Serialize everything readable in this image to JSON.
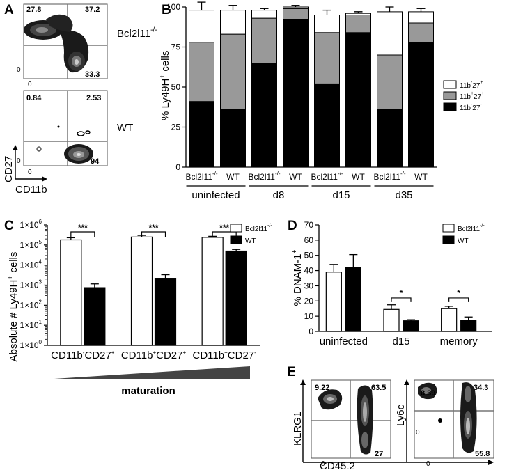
{
  "panels": {
    "A": {
      "letter": "A",
      "top": {
        "label": "Bcl2l11",
        "sup": "-/-",
        "q_tl": "27.8",
        "q_tr": "37.2",
        "q_br": "33.3"
      },
      "bottom": {
        "label": "WT",
        "q_tl": "0.84",
        "q_tr": "2.53",
        "q_br": "94"
      },
      "ylabel": "CD27",
      "xlabel": "CD11b",
      "tick_zero": "0"
    },
    "E": {
      "letter": "E",
      "left": {
        "q_tl": "9.22",
        "q_tr": "63.5",
        "q_br": "27",
        "ylabel": "KLRG1"
      },
      "right": {
        "q_tl": "8.39",
        "q_tr": "34.3",
        "q_br": "55.8",
        "ylabel": "Ly6c"
      },
      "xlabel": "CD45.2",
      "tick_zero": "0"
    }
  },
  "chart_data": [
    {
      "panel": "B",
      "type": "bar",
      "stacked": true,
      "ylabel": "% Ly49H",
      "ylabel_sup": "+",
      "ylabel_tail": " cells",
      "ylim": [
        0,
        100
      ],
      "yticks": [
        0,
        25,
        50,
        75,
        100
      ],
      "categories": [
        "Bcl2l11-/-",
        "WT",
        "Bcl2l11-/-",
        "WT",
        "Bcl2l11-/-",
        "WT",
        "Bcl2l11-/-",
        "WT"
      ],
      "category_labels": [
        {
          "base": "Bcl2l11",
          "sup": "-/-"
        },
        {
          "base": "WT",
          "sup": ""
        },
        {
          "base": "Bcl2l11",
          "sup": "-/-"
        },
        {
          "base": "WT",
          "sup": ""
        },
        {
          "base": "Bcl2l11",
          "sup": "-/-"
        },
        {
          "base": "WT",
          "sup": ""
        },
        {
          "base": "Bcl2l11",
          "sup": "-/-"
        },
        {
          "base": "WT",
          "sup": ""
        }
      ],
      "groups": [
        "uninfected",
        "d8",
        "d15",
        "d35"
      ],
      "series": [
        {
          "name": "11b-27-",
          "legend": {
            "a": "11b",
            "as": "-",
            "b": "27",
            "bs": "-"
          },
          "color": "#000000",
          "values": [
            41,
            36,
            65,
            92,
            52,
            84,
            36,
            78
          ],
          "err": [
            8,
            2,
            1,
            1,
            7,
            2,
            6,
            3
          ]
        },
        {
          "name": "11b+27+",
          "legend": {
            "a": "11b",
            "as": "+",
            "b": "27",
            "bs": "+"
          },
          "color": "#999999",
          "values": [
            37,
            47,
            28,
            7,
            32,
            11,
            34,
            12
          ],
          "err": [
            14,
            6,
            0.5,
            0.5,
            4,
            2,
            2,
            3
          ]
        },
        {
          "name": "11b-27+",
          "legend": {
            "a": "11b",
            "as": "-",
            "b": "27",
            "bs": "+"
          },
          "color": "#ffffff",
          "values": [
            20,
            15,
            5,
            1,
            11,
            1,
            27,
            7
          ],
          "err": [
            5,
            3,
            1,
            1,
            3,
            1,
            3,
            2
          ]
        }
      ],
      "legend_position": "right"
    },
    {
      "panel": "C",
      "type": "bar",
      "log_scale": true,
      "ylabel": "Absolute # Ly49H",
      "ylabel_sup": "+",
      "ylabel_tail": " cells",
      "ylim": [
        1,
        1000000
      ],
      "ytick_labels": [
        "1×10",
        "1×10",
        "1×10",
        "1×10",
        "1×10",
        "1×10",
        "1×10"
      ],
      "ytick_exps": [
        "0",
        "1",
        "2",
        "3",
        "4",
        "5",
        "6"
      ],
      "categories": [
        "CD11b-CD27+",
        "CD11b+CD27+",
        "CD11b+CD27-"
      ],
      "category_labels": [
        {
          "a": "CD11b",
          "as": "-",
          "b": "CD27",
          "bs": "+"
        },
        {
          "a": "CD11b",
          "as": "+",
          "b": "CD27",
          "bs": "+"
        },
        {
          "a": "CD11b",
          "as": "+",
          "b": "CD27",
          "bs": "-"
        }
      ],
      "series": [
        {
          "name": "Bcl2l11-/-",
          "legend": {
            "base": "Bcl2l11",
            "sup": "-/-"
          },
          "color": "#ffffff",
          "values": [
            180000,
            250000,
            240000
          ],
          "err_hi": [
            230000,
            300000,
            270000
          ]
        },
        {
          "name": "WT",
          "legend": {
            "base": "WT",
            "sup": ""
          },
          "color": "#000000",
          "values": [
            750,
            2200,
            50000
          ],
          "err_hi": [
            1150,
            3300,
            60000
          ]
        }
      ],
      "significance": [
        "***",
        "***",
        "***"
      ],
      "xlabel": "maturation",
      "legend_position": "top-right"
    },
    {
      "panel": "D",
      "type": "bar",
      "ylabel": "% DNAM-1",
      "ylabel_sup": "+",
      "ylim": [
        0,
        70
      ],
      "yticks": [
        0,
        10,
        20,
        30,
        40,
        50,
        60,
        70
      ],
      "categories": [
        "uninfected",
        "d15",
        "memory"
      ],
      "series": [
        {
          "name": "Bcl2l11-/-",
          "legend": {
            "base": "Bcl2l11",
            "sup": "-/-"
          },
          "color": "#ffffff",
          "values": [
            39,
            14.5,
            15
          ],
          "err": [
            5,
            3,
            1.5
          ]
        },
        {
          "name": "WT",
          "legend": {
            "base": "WT",
            "sup": ""
          },
          "color": "#000000",
          "values": [
            42,
            7,
            7.5
          ],
          "err": [
            8.5,
            0.7,
            2
          ]
        }
      ],
      "significance": [
        "",
        "*",
        "*"
      ],
      "legend_position": "top-right"
    }
  ]
}
